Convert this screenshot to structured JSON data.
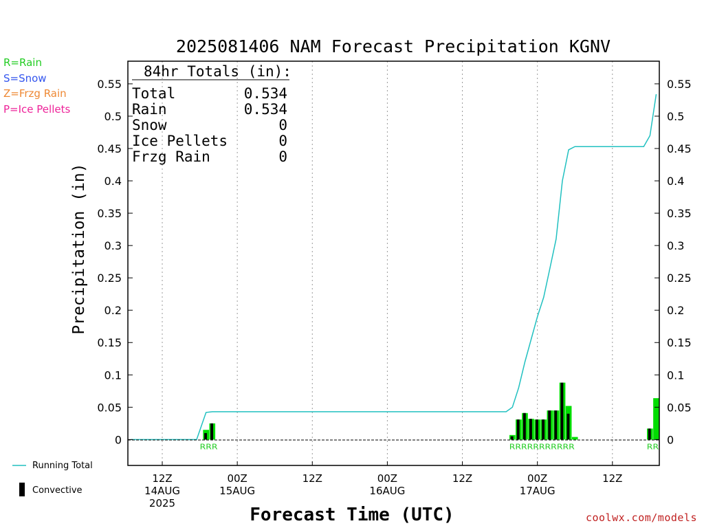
{
  "chart_data": {
    "type": "bar",
    "title": "2025081406 NAM Forecast Precipitation KGNV",
    "xlabel": "Forecast Time (UTC)",
    "ylabel": "Precipitation (in)",
    "ylim": [
      -0.04,
      0.585
    ],
    "yticks": [
      0,
      0.05,
      0.1,
      0.15,
      0.2,
      0.25,
      0.3,
      0.35,
      0.4,
      0.45,
      0.5,
      0.55
    ],
    "ytick_labels": [
      "0",
      "0.05",
      "0.1",
      "0.15",
      "0.2",
      "0.25",
      "0.3",
      "0.35",
      "0.4",
      "0.45",
      "0.5",
      "0.55"
    ],
    "x_range_hours": [
      0,
      84
    ],
    "x_ticks": [
      {
        "hour": 5,
        "line1": "12Z",
        "line2": "14AUG",
        "line3": "2025"
      },
      {
        "hour": 17,
        "line1": "00Z",
        "line2": "15AUG",
        "line3": ""
      },
      {
        "hour": 29,
        "line1": "12Z",
        "line2": "",
        "line3": ""
      },
      {
        "hour": 41,
        "line1": "00Z",
        "line2": "16AUG",
        "line3": ""
      },
      {
        "hour": 53,
        "line1": "12Z",
        "line2": "",
        "line3": ""
      },
      {
        "hour": 65,
        "line1": "00Z",
        "line2": "17AUG",
        "line3": ""
      },
      {
        "hour": 77,
        "line1": "12Z",
        "line2": "",
        "line3": ""
      }
    ],
    "grid": "vertical dotted",
    "totals_box": {
      "heading": "84hr Totals (in):",
      "rows": [
        {
          "label": "Total",
          "value": "0.534"
        },
        {
          "label": "Rain",
          "value": "0.534"
        },
        {
          "label": "Snow",
          "value": "0"
        },
        {
          "label": "Ice Pellets",
          "value": "0"
        },
        {
          "label": "Frzg Rain",
          "value": "0"
        }
      ]
    },
    "series": [
      {
        "name": "Running Total",
        "type": "line",
        "color": "#20c0c0",
        "points": [
          [
            0,
            0
          ],
          [
            10.5,
            0
          ],
          [
            12,
            0.042
          ],
          [
            13,
            0.043
          ],
          [
            60,
            0.043
          ],
          [
            61,
            0.05
          ],
          [
            62,
            0.08
          ],
          [
            63,
            0.12
          ],
          [
            64,
            0.155
          ],
          [
            65,
            0.19
          ],
          [
            66,
            0.22
          ],
          [
            67,
            0.265
          ],
          [
            68,
            0.31
          ],
          [
            69,
            0.4
          ],
          [
            70,
            0.448
          ],
          [
            71,
            0.453
          ],
          [
            82,
            0.453
          ],
          [
            83,
            0.47
          ],
          [
            84,
            0.534
          ]
        ]
      },
      {
        "name": "Precip",
        "type": "bar",
        "color": "#00dd00",
        "bars": [
          {
            "hour": 12,
            "total": 0.015,
            "convective": 0.01
          },
          {
            "hour": 13,
            "total": 0.025,
            "convective": 0.025
          },
          {
            "hour": 61,
            "total": 0.007,
            "convective": 0.005
          },
          {
            "hour": 62,
            "total": 0.031,
            "convective": 0.031
          },
          {
            "hour": 63,
            "total": 0.041,
            "convective": 0.041
          },
          {
            "hour": 64,
            "total": 0.032,
            "convective": 0.032
          },
          {
            "hour": 65,
            "total": 0.031,
            "convective": 0.031
          },
          {
            "hour": 66,
            "total": 0.031,
            "convective": 0.031
          },
          {
            "hour": 67,
            "total": 0.045,
            "convective": 0.045
          },
          {
            "hour": 68,
            "total": 0.045,
            "convective": 0.045
          },
          {
            "hour": 69,
            "total": 0.088,
            "convective": 0.088
          },
          {
            "hour": 70,
            "total": 0.052,
            "convective": 0.04
          },
          {
            "hour": 71,
            "total": 0.004,
            "convective": 0.0
          },
          {
            "hour": 83,
            "total": 0.017,
            "convective": 0.017
          },
          {
            "hour": 84,
            "total": 0.064,
            "convective": 0.0
          }
        ]
      }
    ],
    "type_markers": [
      {
        "start_hour": 11,
        "text": "RRR"
      },
      {
        "start_hour": 60.5,
        "text": "RRRRRRRRRRR"
      },
      {
        "start_hour": 82.5,
        "text": "RR"
      }
    ],
    "left_legend": [
      {
        "text": "R=Rain",
        "color": "#22cc22"
      },
      {
        "text": "S=Snow",
        "color": "#3355ee"
      },
      {
        "text": "Z=Frzg Rain",
        "color": "#ee8833"
      },
      {
        "text": "P=Ice Pellets",
        "color": "#ee2299"
      }
    ],
    "bottom_legend": {
      "running_total": "Running Total",
      "convective": "Convective"
    },
    "credit": "coolwx.com/models"
  }
}
